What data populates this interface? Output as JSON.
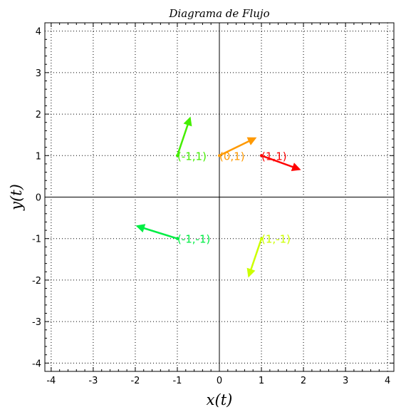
{
  "chart_data": {
    "type": "scatter",
    "title": "Diagrama de Flujo",
    "xlabel": "x(t)",
    "ylabel": "y(t)",
    "xlim": [
      -4.15,
      4.15
    ],
    "ylim": [
      -4.2,
      4.2
    ],
    "grid": true,
    "x_ticks": [
      -4,
      -3,
      -2,
      -1,
      0,
      1,
      2,
      3,
      4
    ],
    "y_ticks": [
      -4,
      -3,
      -2,
      -1,
      0,
      1,
      2,
      3,
      4
    ],
    "points": [
      {
        "label": "(-1,1)",
        "x": -1,
        "y": 1,
        "dx": 0.3,
        "dy": 0.9,
        "color": "#44ee00"
      },
      {
        "label": "(0,1)",
        "x": 0,
        "y": 1,
        "dx": 0.85,
        "dy": 0.42,
        "color": "#ff9900"
      },
      {
        "label": "(1,1)",
        "x": 1,
        "y": 1,
        "dx": 0.9,
        "dy": -0.33,
        "color": "#ff0000"
      },
      {
        "label": "(-1,-1)",
        "x": -1,
        "y": -1,
        "dx": -0.95,
        "dy": 0.3,
        "color": "#00ee44"
      },
      {
        "label": "(1,-1)",
        "x": 1,
        "y": -1,
        "dx": -0.3,
        "dy": -0.9,
        "color": "#ccff00"
      }
    ]
  }
}
